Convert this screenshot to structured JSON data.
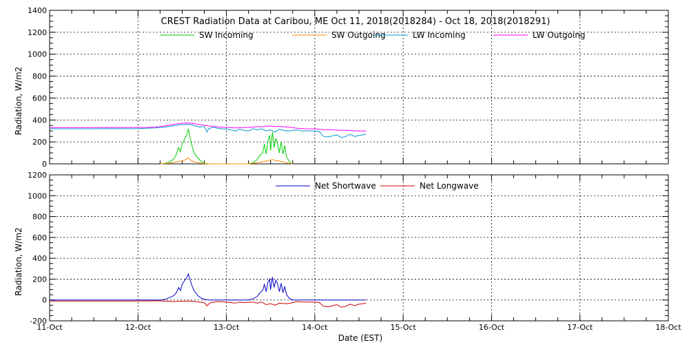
{
  "chart_data": [
    {
      "type": "line",
      "title": "CREST Radiation Data at Caribou, ME   Oct 11, 2018(2018284) - Oct 18, 2018(2018291)",
      "ylabel": "Radiation, W/m^2",
      "xlabel": "",
      "ylim": [
        0,
        1400
      ],
      "yticks": [
        0,
        200,
        400,
        600,
        800,
        1000,
        1200,
        1400
      ],
      "xlim": [
        0,
        7
      ],
      "grid": true,
      "legend_position": "top",
      "series": [
        {
          "name": "SW Incoming",
          "color": "#00cc00",
          "points": [
            [
              1.25,
              0
            ],
            [
              1.3,
              5
            ],
            [
              1.35,
              15
            ],
            [
              1.4,
              40
            ],
            [
              1.43,
              80
            ],
            [
              1.46,
              150
            ],
            [
              1.48,
              110
            ],
            [
              1.5,
              180
            ],
            [
              1.53,
              230
            ],
            [
              1.55,
              260
            ],
            [
              1.57,
              320
            ],
            [
              1.59,
              230
            ],
            [
              1.61,
              170
            ],
            [
              1.63,
              110
            ],
            [
              1.65,
              80
            ],
            [
              1.68,
              50
            ],
            [
              1.72,
              20
            ],
            [
              1.76,
              5
            ],
            [
              1.8,
              0
            ],
            [
              2.25,
              0
            ],
            [
              2.3,
              10
            ],
            [
              2.35,
              40
            ],
            [
              2.38,
              80
            ],
            [
              2.41,
              100
            ],
            [
              2.43,
              180
            ],
            [
              2.45,
              90
            ],
            [
              2.47,
              210
            ],
            [
              2.49,
              260
            ],
            [
              2.5,
              120
            ],
            [
              2.52,
              290
            ],
            [
              2.54,
              150
            ],
            [
              2.56,
              230
            ],
            [
              2.58,
              180
            ],
            [
              2.6,
              100
            ],
            [
              2.62,
              200
            ],
            [
              2.64,
              90
            ],
            [
              2.66,
              170
            ],
            [
              2.68,
              60
            ],
            [
              2.7,
              40
            ],
            [
              2.72,
              10
            ],
            [
              2.75,
              0
            ]
          ]
        },
        {
          "name": "SW Outgoing",
          "color": "#ff8800",
          "points": [
            [
              1.25,
              0
            ],
            [
              1.35,
              5
            ],
            [
              1.45,
              20
            ],
            [
              1.53,
              35
            ],
            [
              1.57,
              55
            ],
            [
              1.6,
              30
            ],
            [
              1.65,
              15
            ],
            [
              1.72,
              5
            ],
            [
              1.8,
              0
            ],
            [
              2.25,
              0
            ],
            [
              2.35,
              10
            ],
            [
              2.45,
              25
            ],
            [
              2.5,
              35
            ],
            [
              2.52,
              40
            ],
            [
              2.56,
              30
            ],
            [
              2.6,
              25
            ],
            [
              2.64,
              20
            ],
            [
              2.68,
              8
            ],
            [
              2.75,
              0
            ]
          ]
        },
        {
          "name": "LW Incoming",
          "color": "#0099cc",
          "points": [
            [
              0,
              320
            ],
            [
              0.5,
              320
            ],
            [
              1.0,
              322
            ],
            [
              1.1,
              325
            ],
            [
              1.2,
              328
            ],
            [
              1.3,
              335
            ],
            [
              1.4,
              348
            ],
            [
              1.5,
              358
            ],
            [
              1.55,
              362
            ],
            [
              1.6,
              358
            ],
            [
              1.65,
              345
            ],
            [
              1.7,
              335
            ],
            [
              1.75,
              340
            ],
            [
              1.78,
              290
            ],
            [
              1.8,
              320
            ],
            [
              1.85,
              335
            ],
            [
              1.9,
              325
            ],
            [
              2.0,
              315
            ],
            [
              2.05,
              310
            ],
            [
              2.1,
              300
            ],
            [
              2.15,
              315
            ],
            [
              2.2,
              305
            ],
            [
              2.25,
              300
            ],
            [
              2.3,
              320
            ],
            [
              2.35,
              310
            ],
            [
              2.4,
              320
            ],
            [
              2.45,
              300
            ],
            [
              2.5,
              310
            ],
            [
              2.55,
              290
            ],
            [
              2.6,
              315
            ],
            [
              2.65,
              305
            ],
            [
              2.7,
              300
            ],
            [
              2.75,
              305
            ],
            [
              2.8,
              310
            ],
            [
              2.85,
              300
            ],
            [
              2.9,
              302
            ],
            [
              2.95,
              300
            ],
            [
              3.0,
              300
            ],
            [
              3.05,
              295
            ],
            [
              3.1,
              250
            ],
            [
              3.15,
              245
            ],
            [
              3.2,
              255
            ],
            [
              3.25,
              265
            ],
            [
              3.3,
              240
            ],
            [
              3.35,
              250
            ],
            [
              3.4,
              270
            ],
            [
              3.45,
              250
            ],
            [
              3.5,
              260
            ],
            [
              3.55,
              265
            ],
            [
              3.58,
              270
            ]
          ]
        },
        {
          "name": "LW Outgoing",
          "color": "#ff00ff",
          "points": [
            [
              0,
              330
            ],
            [
              0.5,
              330
            ],
            [
              1.0,
              332
            ],
            [
              1.1,
              333
            ],
            [
              1.2,
              335
            ],
            [
              1.3,
              345
            ],
            [
              1.4,
              360
            ],
            [
              1.5,
              370
            ],
            [
              1.55,
              375
            ],
            [
              1.6,
              370
            ],
            [
              1.7,
              358
            ],
            [
              1.8,
              345
            ],
            [
              1.9,
              338
            ],
            [
              2.0,
              332
            ],
            [
              2.1,
              328
            ],
            [
              2.2,
              330
            ],
            [
              2.3,
              335
            ],
            [
              2.35,
              340
            ],
            [
              2.4,
              338
            ],
            [
              2.45,
              342
            ],
            [
              2.5,
              345
            ],
            [
              2.55,
              340
            ],
            [
              2.6,
              342
            ],
            [
              2.65,
              338
            ],
            [
              2.7,
              335
            ],
            [
              2.8,
              325
            ],
            [
              2.9,
              320
            ],
            [
              3.0,
              318
            ],
            [
              3.1,
              312
            ],
            [
              3.2,
              310
            ],
            [
              3.3,
              305
            ],
            [
              3.4,
              305
            ],
            [
              3.5,
              300
            ],
            [
              3.58,
              300
            ]
          ]
        }
      ]
    },
    {
      "type": "line",
      "title": "",
      "ylabel": "Radiation, W/m^2",
      "xlabel": "Date (EST)",
      "ylim": [
        -200,
        1200
      ],
      "yticks": [
        -200,
        0,
        200,
        400,
        600,
        800,
        1000,
        1200
      ],
      "xlim": [
        0,
        7
      ],
      "xticks": [
        0,
        1,
        2,
        3,
        4,
        5,
        6,
        7
      ],
      "xticklabels": [
        "11-Oct",
        "12-Oct",
        "13-Oct",
        "14-Oct",
        "15-Oct",
        "16-Oct",
        "17-Oct",
        "18-Oct"
      ],
      "grid": true,
      "legend_position": "top",
      "series": [
        {
          "name": "Net Shortwave",
          "color": "#0000cc",
          "points": [
            [
              0,
              0
            ],
            [
              1.25,
              0
            ],
            [
              1.3,
              5
            ],
            [
              1.35,
              20
            ],
            [
              1.4,
              40
            ],
            [
              1.43,
              65
            ],
            [
              1.46,
              120
            ],
            [
              1.48,
              90
            ],
            [
              1.5,
              150
            ],
            [
              1.53,
              190
            ],
            [
              1.55,
              210
            ],
            [
              1.57,
              250
            ],
            [
              1.59,
              190
            ],
            [
              1.61,
              140
            ],
            [
              1.63,
              95
            ],
            [
              1.65,
              70
            ],
            [
              1.68,
              40
            ],
            [
              1.72,
              15
            ],
            [
              1.76,
              5
            ],
            [
              1.8,
              0
            ],
            [
              2.25,
              0
            ],
            [
              2.3,
              10
            ],
            [
              2.35,
              35
            ],
            [
              2.38,
              70
            ],
            [
              2.41,
              90
            ],
            [
              2.43,
              150
            ],
            [
              2.45,
              80
            ],
            [
              2.47,
              170
            ],
            [
              2.49,
              200
            ],
            [
              2.5,
              100
            ],
            [
              2.52,
              220
            ],
            [
              2.54,
              120
            ],
            [
              2.56,
              190
            ],
            [
              2.58,
              150
            ],
            [
              2.6,
              80
            ],
            [
              2.62,
              160
            ],
            [
              2.64,
              70
            ],
            [
              2.66,
              130
            ],
            [
              2.68,
              50
            ],
            [
              2.7,
              30
            ],
            [
              2.72,
              10
            ],
            [
              2.75,
              0
            ],
            [
              3.58,
              0
            ]
          ]
        },
        {
          "name": "Net Longwave",
          "color": "#cc0000",
          "points": [
            [
              0,
              -10
            ],
            [
              0.5,
              -10
            ],
            [
              1.0,
              -10
            ],
            [
              1.2,
              -8
            ],
            [
              1.3,
              -10
            ],
            [
              1.4,
              -15
            ],
            [
              1.5,
              -12
            ],
            [
              1.6,
              -10
            ],
            [
              1.7,
              -20
            ],
            [
              1.75,
              -25
            ],
            [
              1.78,
              -55
            ],
            [
              1.82,
              -25
            ],
            [
              1.9,
              -15
            ],
            [
              2.0,
              -20
            ],
            [
              2.1,
              -30
            ],
            [
              2.15,
              -20
            ],
            [
              2.2,
              -25
            ],
            [
              2.3,
              -20
            ],
            [
              2.35,
              -30
            ],
            [
              2.4,
              -20
            ],
            [
              2.45,
              -45
            ],
            [
              2.5,
              -35
            ],
            [
              2.55,
              -50
            ],
            [
              2.6,
              -30
            ],
            [
              2.65,
              -35
            ],
            [
              2.7,
              -35
            ],
            [
              2.8,
              -15
            ],
            [
              2.9,
              -20
            ],
            [
              2.95,
              -20
            ],
            [
              3.0,
              -20
            ],
            [
              3.05,
              -25
            ],
            [
              3.1,
              -60
            ],
            [
              3.15,
              -65
            ],
            [
              3.2,
              -55
            ],
            [
              3.25,
              -45
            ],
            [
              3.3,
              -70
            ],
            [
              3.35,
              -60
            ],
            [
              3.4,
              -40
            ],
            [
              3.45,
              -55
            ],
            [
              3.5,
              -40
            ],
            [
              3.55,
              -35
            ],
            [
              3.58,
              -30
            ]
          ]
        }
      ]
    }
  ]
}
